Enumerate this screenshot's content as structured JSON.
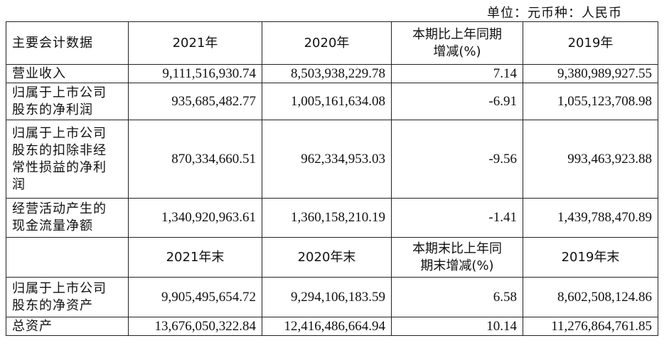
{
  "unit_text": "单位：元币种：人民币",
  "header1": {
    "label": "主要会计数据",
    "c1": "2021年",
    "c2": "2020年",
    "c3": "本期比上年同期\n增减(%)",
    "c4": "2019年"
  },
  "rows1": [
    {
      "label": "营业收入",
      "c1": "9,111,516,930.74",
      "c2": "8,503,938,229.78",
      "c3": "7.14",
      "c4": "9,380,989,927.55"
    },
    {
      "label": "归属于上市公司\n股东的净利润",
      "c1": "935,685,482.77",
      "c2": "1,005,161,634.08",
      "c3": "-6.91",
      "c4": "1,055,123,708.98"
    },
    {
      "label": "归属于上市公司\n股东的扣除非经\n常性损益的净利\n润",
      "c1": "870,334,660.51",
      "c2": "962,334,953.03",
      "c3": "-9.56",
      "c4": "993,463,923.88"
    },
    {
      "label": "经营活动产生的\n现金流量净额",
      "c1": "1,340,920,963.61",
      "c2": "1,360,158,210.19",
      "c3": "-1.41",
      "c4": "1,439,788,470.89"
    }
  ],
  "header2": {
    "label": "",
    "c1": "2021年末",
    "c2": "2020年末",
    "c3": "本期末比上年同\n期末增减(%)",
    "c4": "2019年末"
  },
  "rows2": [
    {
      "label": "归属于上市公司\n股东的净资产",
      "c1": "9,905,495,654.72",
      "c2": "9,294,106,183.59",
      "c3": "6.58",
      "c4": "8,602,508,124.86"
    },
    {
      "label": "总资产",
      "c1": "13,676,050,322.84",
      "c2": "12,416,486,664.94",
      "c3": "10.14",
      "c4": "11,276,864,761.85"
    }
  ]
}
